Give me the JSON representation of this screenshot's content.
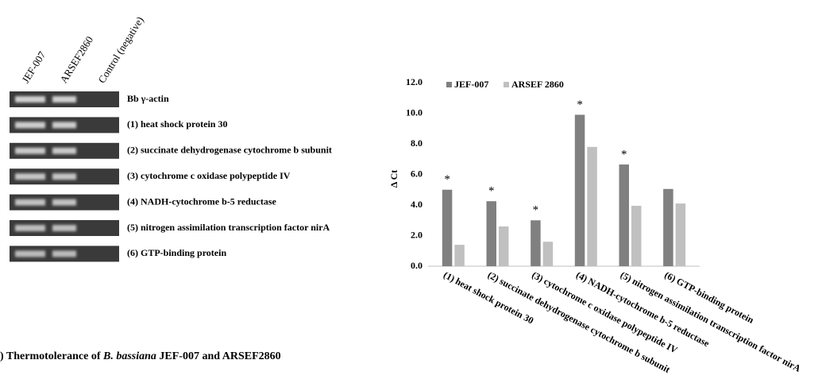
{
  "gel": {
    "lanes": [
      "JEF-007",
      "ARSEF2860",
      "Control (negative)"
    ],
    "rows": [
      "Bb γ-actin",
      "(1) heat shock protein 30",
      "(2) succinate dehydrogenase cytochrome b subunit",
      "(3) cytochrome c oxidase polypeptide IV",
      "(4) NADH-cytochrome b-5 reductase",
      "(5) nitrogen assimilation transcription factor nirA",
      "(6) GTP-binding protein"
    ]
  },
  "caption": {
    "prefix": ") Thermotolerance of ",
    "species": "B. bassiana",
    "suffix": " JEF-007 and ARSEF2860"
  },
  "chart_data": {
    "type": "bar",
    "y_label": "Δ Ct",
    "categories": [
      "(1) heat shock protein 30",
      "(2) succinate dehydrogenase cytochrome b subunit",
      "(3) cytochrome c oxidase polypeptide IV",
      "(4) NADH-cytochrome b-5 reductase",
      "(5) nitrogen assimilation transcription factor nirA",
      "(6) GTP-binding protein"
    ],
    "series": [
      {
        "name": "JEF-007",
        "color": "#808080",
        "values": [
          5.0,
          4.25,
          3.0,
          9.9,
          6.65,
          5.05
        ]
      },
      {
        "name": "ARSEF 2860",
        "color": "#c0c0c0",
        "values": [
          1.4,
          2.6,
          1.6,
          7.8,
          3.95,
          4.1
        ]
      }
    ],
    "significance": [
      "*",
      "*",
      "*",
      "*",
      "*",
      null
    ],
    "ylim": [
      0,
      12
    ],
    "yticks": [
      {
        "value": 0,
        "label": "0.0"
      },
      {
        "value": 2,
        "label": "2.0"
      },
      {
        "value": 4,
        "label": "4.0"
      },
      {
        "value": 6,
        "label": "6.0"
      },
      {
        "value": 8,
        "label": "8.0"
      },
      {
        "value": 10,
        "label": "10.0"
      },
      {
        "value": 12,
        "label": "12.0"
      }
    ],
    "legend": "top-left"
  }
}
